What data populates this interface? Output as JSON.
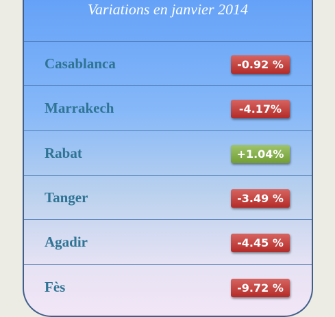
{
  "title": "Variations en janvier 2014",
  "rows": [
    {
      "city": "Casablanca",
      "change": "-0.92 %",
      "color": "#c8302c"
    },
    {
      "city": "Marrakech",
      "change": "-4.17%",
      "color": "#c8302c"
    },
    {
      "city": "Rabat",
      "change": "+1.04%",
      "color": "#7fb03a"
    },
    {
      "city": "Tanger",
      "change": "-3.49 %",
      "color": "#c8302c"
    },
    {
      "city": "Agadir",
      "change": "-4.45 %",
      "color": "#c8302c"
    },
    {
      "city": "Fès",
      "change": "-9.72 %",
      "color": "#c8302c"
    }
  ]
}
